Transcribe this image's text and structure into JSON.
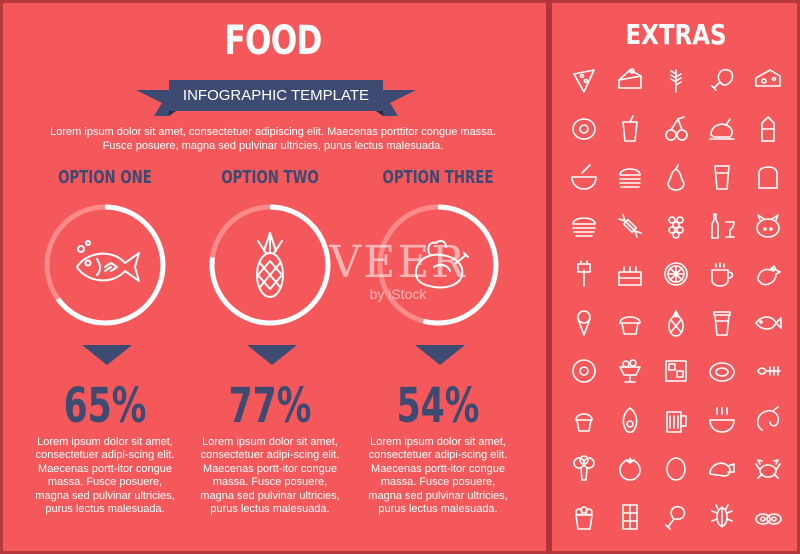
{
  "main": {
    "title": "FOOD",
    "subtitle": "INFOGRAPHIC TEMPLATE",
    "intro": "Lorem ipsum dolor sit amet, consectetuer adipiscing elit. Maecenas porttitor congue massa. Fusce posuere, magna sed pulvinar ultricies, purus lectus malesuada."
  },
  "options": [
    {
      "title": "OPTION ONE",
      "percent": "65%",
      "value": 65,
      "icon": "fish-icon",
      "text": "Lorem ipsum dolor sit amet, consectetuer adipi-scing elit. Maecenas portt-itor congue massa. Fusce posuere, magna sed pulvinar ultricies, purus lectus malesuada."
    },
    {
      "title": "OPTION TWO",
      "percent": "77%",
      "value": 77,
      "icon": "pineapple-icon",
      "text": "Lorem ipsum dolor sit amet, consectetuer adipi-scing elit. Maecenas portt-itor congue massa. Fusce posuere, magna sed pulvinar ultricies, purus lectus malesuada."
    },
    {
      "title": "OPTION THREE",
      "percent": "54%",
      "value": 54,
      "icon": "roast-chicken-icon",
      "text": "Lorem ipsum dolor sit amet, consectetuer adipi-scing elit. Maecenas portt-itor congue massa. Fusce posuere, magna sed pulvinar ultricies, purus lectus malesuada."
    }
  ],
  "extras": {
    "title": "EXTRAS",
    "icons": [
      "pizza-icon",
      "cake-slice-icon",
      "wheat-icon",
      "ham-icon",
      "cheese-icon",
      "egg-icon",
      "soda-cup-icon",
      "cherry-icon",
      "roast-turkey-icon",
      "milk-carton-icon",
      "soup-bowl-icon",
      "burger-icon",
      "pear-icon",
      "juice-glass-icon",
      "bread-icon",
      "sandwich-icon",
      "candy-icon",
      "grapes-icon",
      "wine-icon",
      "pig-icon",
      "sausage-fork-icon",
      "birthday-cake-icon",
      "citrus-slice-icon",
      "coffee-cup-icon",
      "hen-icon",
      "ice-cream-icon",
      "cupcake-icon",
      "pineapple-small-icon",
      "takeaway-cup-icon",
      "fish-small-icon",
      "donut-icon",
      "sundae-icon",
      "ice-cubes-icon",
      "steak-icon",
      "fish-bone-icon",
      "muffin-icon",
      "avocado-icon",
      "beer-mug-icon",
      "stew-bowl-icon",
      "shrimp-icon",
      "broccoli-icon",
      "tomato-icon",
      "egg-whole-icon",
      "shell-icon",
      "crab-icon",
      "popcorn-icon",
      "chocolate-icon",
      "drumstick-icon",
      "lobster-icon",
      "sushi-icon"
    ]
  },
  "watermark": {
    "brand": "VEER",
    "sub": "by iStock"
  },
  "colors": {
    "background": "#f4585a",
    "accent": "#3d4a72",
    "ring_track": "#ff8a8a",
    "divider": "#b23438"
  }
}
